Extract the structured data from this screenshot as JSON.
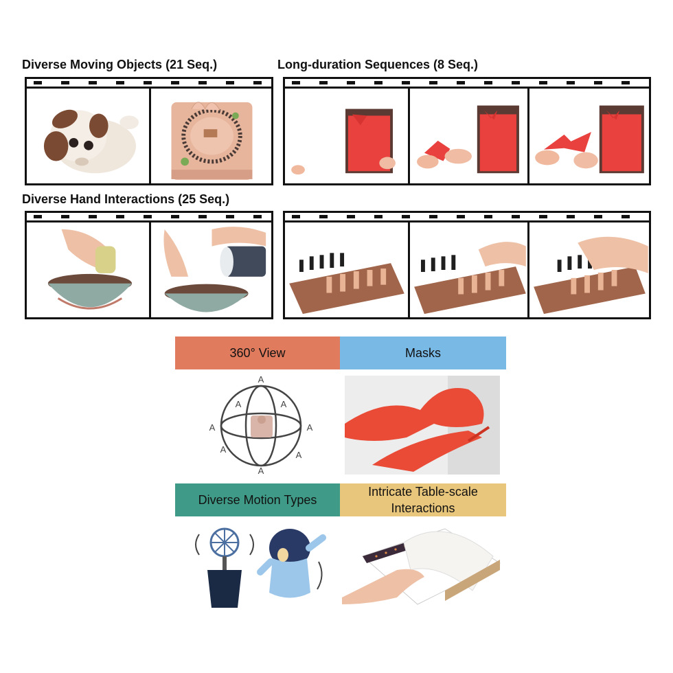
{
  "sections": {
    "moving_objects": "Diverse Moving Objects (21 Seq.)",
    "long_duration": "Long-duration Sequences (8 Seq.)",
    "hand_interactions": "Diverse Hand Interactions (25 Seq.)"
  },
  "features": {
    "view360": "360° View",
    "masks": "Masks",
    "motion_types": "Diverse Motion Types",
    "table_scale": "Intricate Table-scale Interactions"
  },
  "colors": {
    "view360": "#e07b5d",
    "masks": "#79b9e6",
    "motion_types": "#3f9b87",
    "table_scale": "#e8c67c"
  },
  "sphere_arrows": [
    "A",
    "A",
    "A",
    "A",
    "A",
    "A",
    "A",
    "A"
  ]
}
